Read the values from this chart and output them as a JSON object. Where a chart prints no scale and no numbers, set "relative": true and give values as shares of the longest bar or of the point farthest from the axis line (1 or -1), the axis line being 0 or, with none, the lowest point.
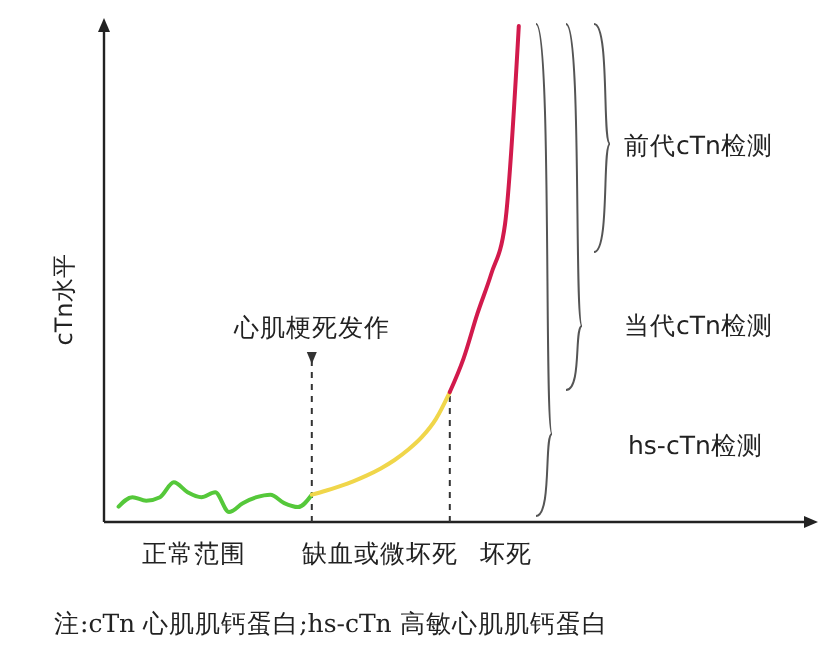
{
  "chart_data": {
    "type": "line",
    "ylabel": "cTn水平",
    "relative": true,
    "categories": [
      null,
      null,
      null,
      null,
      null,
      null,
      null,
      null,
      null,
      null,
      null,
      null,
      null,
      null,
      null,
      null,
      null,
      null,
      null,
      null,
      null,
      null,
      null,
      null,
      null,
      null,
      null,
      null,
      null,
      null
    ],
    "series": [
      {
        "color": "#55c83a",
        "values": [
          0.031,
          0.05,
          0.043,
          0.05,
          0.08,
          0.06,
          0.05,
          0.06,
          0.02,
          0.038,
          0.05,
          0.055,
          0.038,
          0.03,
          0.055,
          null,
          null,
          null,
          null,
          null,
          null,
          null,
          null,
          null,
          null,
          null,
          null,
          null,
          null,
          null
        ]
      },
      {
        "color": "#f0d64a",
        "values": [
          null,
          null,
          null,
          null,
          null,
          null,
          null,
          null,
          null,
          null,
          null,
          null,
          null,
          null,
          0.055,
          0.063,
          0.072,
          0.082,
          0.094,
          0.108,
          0.125,
          0.146,
          0.172,
          0.208,
          0.262,
          null,
          null,
          null,
          null,
          null
        ]
      },
      {
        "color": "#d21a4c",
        "values": [
          null,
          null,
          null,
          null,
          null,
          null,
          null,
          null,
          null,
          null,
          null,
          null,
          null,
          null,
          null,
          null,
          null,
          null,
          null,
          null,
          null,
          null,
          null,
          null,
          0.262,
          0.33,
          0.42,
          0.5,
          0.6,
          1
        ]
      }
    ],
    "annotations": [
      "心肌梗死发作",
      "前代cTn检测",
      "当代cTn检测",
      "hs-cTn检测",
      "正常范围",
      "缺血或微坏死",
      "坏死",
      "注:cTn 心肌肌钙蛋白;hs-cTn 高敏心肌肌钙蛋白"
    ]
  }
}
